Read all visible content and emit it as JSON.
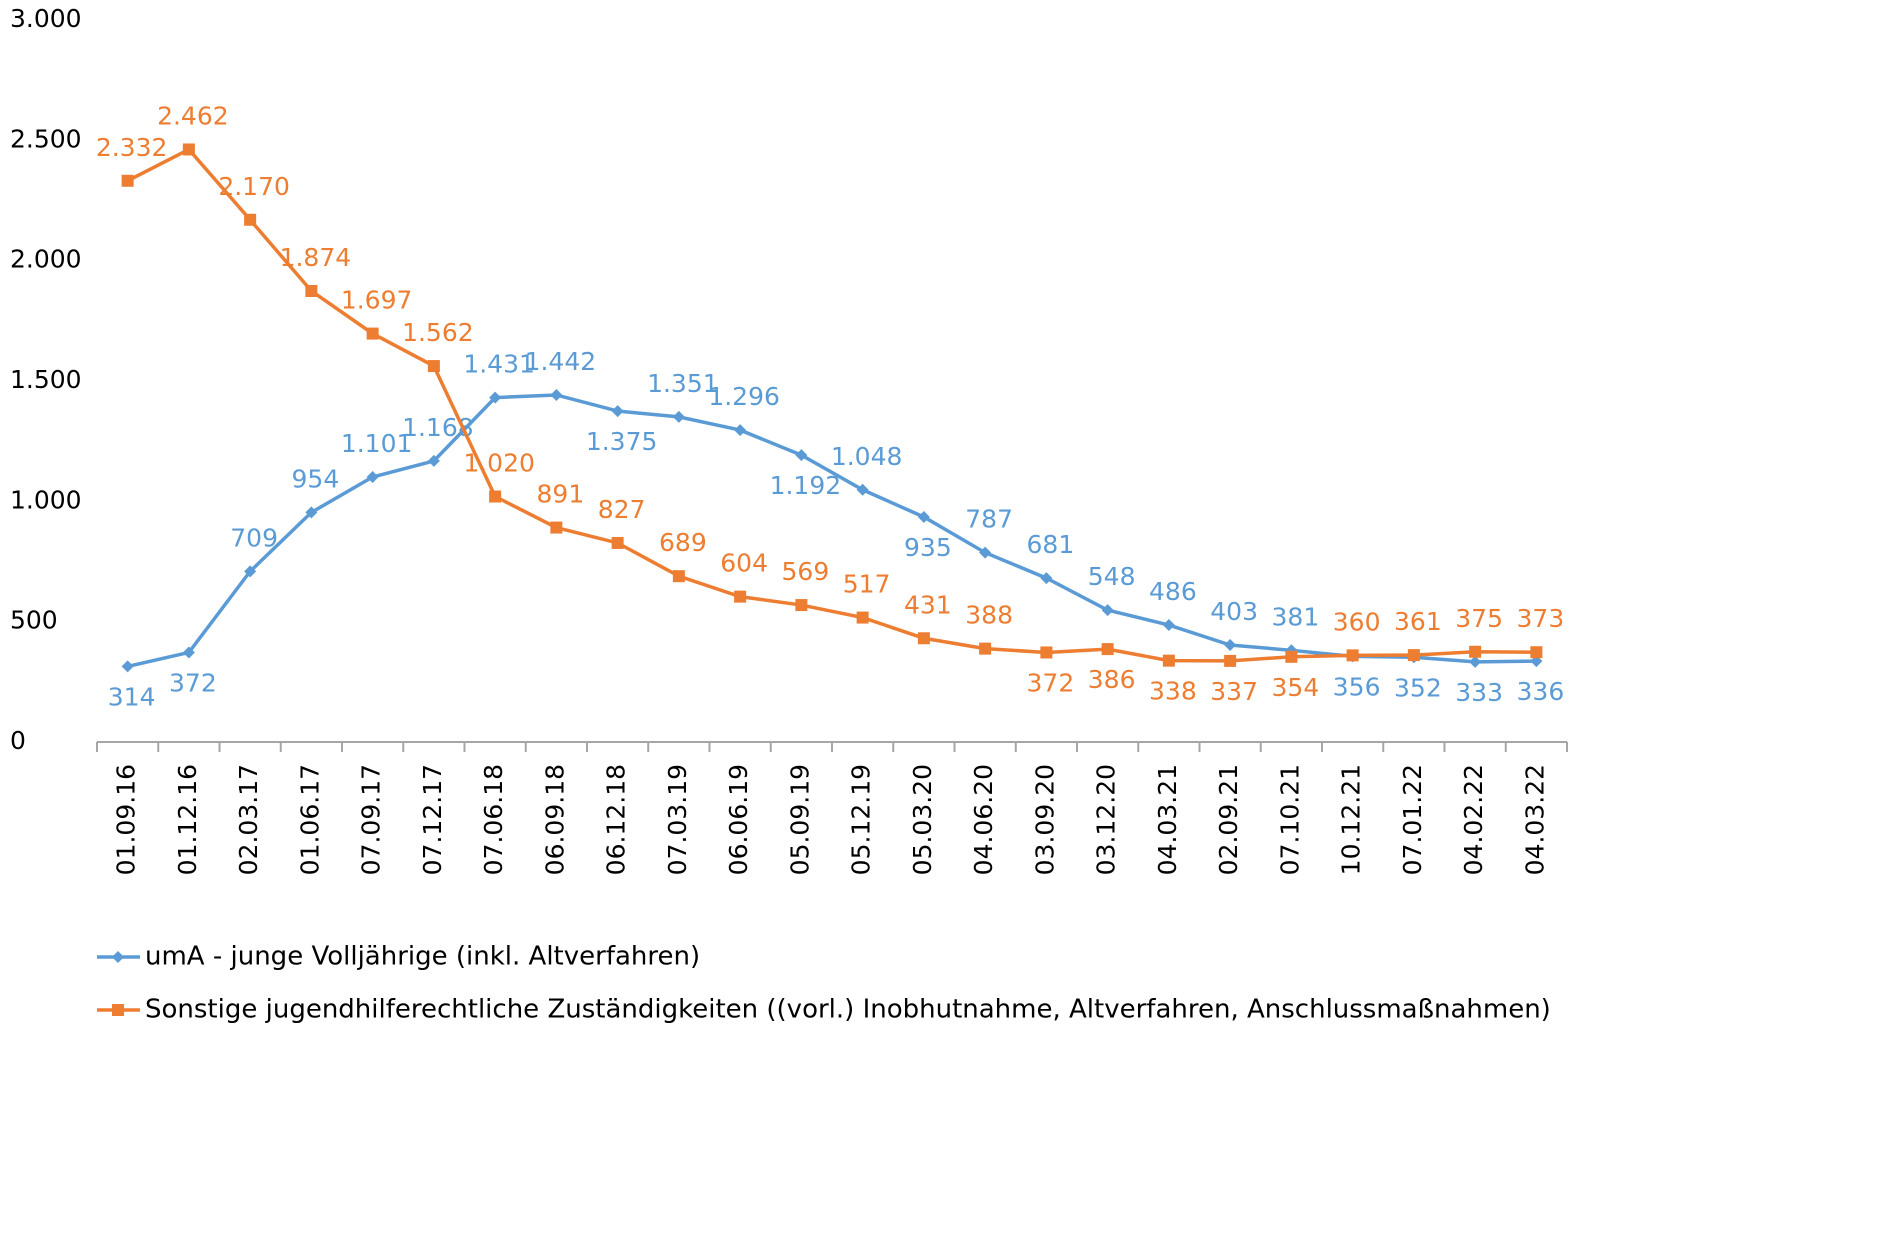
{
  "chart_data": {
    "type": "line",
    "categories": [
      "01.09.16",
      "01.12.16",
      "02.03.17",
      "01.06.17",
      "07.09.17",
      "07.12.17",
      "07.06.18",
      "06.09.18",
      "06.12.18",
      "07.03.19",
      "06.06.19",
      "05.09.19",
      "05.12.19",
      "05.03.20",
      "04.06.20",
      "03.09.20",
      "03.12.20",
      "04.03.21",
      "02.09.21",
      "07.10.21",
      "10.12.21",
      "07.01.22",
      "04.02.22",
      "04.03.22"
    ],
    "series": [
      {
        "name": "umA - junge Volljährige (inkl. Altverfahren)",
        "color": "#5b9bd5",
        "marker": "diamond",
        "values": [
          314,
          372,
          709,
          954,
          1101,
          1168,
          1431,
          1442,
          1375,
          1351,
          1296,
          1192,
          1048,
          935,
          787,
          681,
          548,
          486,
          403,
          381,
          356,
          352,
          333,
          336
        ],
        "value_labels": [
          "314",
          "372",
          "709",
          "954",
          "1.101",
          "1.168",
          "1.431",
          "1.442",
          "1.375",
          "1.351",
          "1.296",
          "1.192",
          "1.048",
          "935",
          "787",
          "681",
          "548",
          "486",
          "403",
          "381",
          "356",
          "352",
          "333",
          "336"
        ]
      },
      {
        "name": "Sonstige jugendhilferechtliche Zuständigkeiten ((vorl.) Inobhutnahme, Altverfahren, Anschlussmaßnahmen)",
        "color": "#ed7d31",
        "marker": "square",
        "values": [
          2332,
          2462,
          2170,
          1874,
          1697,
          1562,
          1020,
          891,
          827,
          689,
          604,
          569,
          517,
          431,
          388,
          372,
          386,
          338,
          337,
          354,
          360,
          361,
          375,
          373
        ],
        "value_labels": [
          "2.332",
          "2.462",
          "2.170",
          "1.874",
          "1.697",
          "1.562",
          "1.020",
          "891",
          "827",
          "689",
          "604",
          "569",
          "517",
          "431",
          "388",
          "372",
          "386",
          "338",
          "337",
          "354",
          "360",
          "361",
          "375",
          "373"
        ]
      }
    ],
    "ylim": [
      0,
      3000
    ],
    "yticks": [
      0,
      500,
      {
        "value": 1000,
        "label": "1.000"
      },
      {
        "value": 1500,
        "label": "1.500"
      },
      {
        "value": 2000,
        "label": "2.000"
      },
      {
        "value": 2500,
        "label": "2.500"
      },
      {
        "value": 3000,
        "label": "3.000"
      }
    ],
    "grid": false,
    "legend": "bottom"
  }
}
